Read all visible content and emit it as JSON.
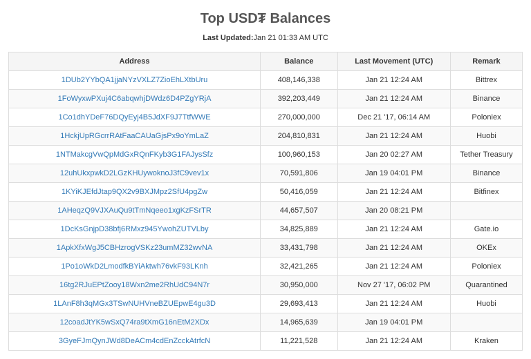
{
  "title": "Top USD₮ Balances",
  "updated_label": "Last Updated:",
  "updated_value": "Jan 21 01:33 AM UTC",
  "columns": [
    "Address",
    "Balance",
    "Last Movement (UTC)",
    "Remark"
  ],
  "colors": {
    "link": "#337ab7",
    "border": "#dddddd",
    "header_bg": "#f5f5f5",
    "row_alt_bg": "#f9f9f9",
    "text": "#333333",
    "title": "#555555"
  },
  "rows": [
    {
      "address": "1DUb2YYbQA1jjaNYzVXLZ7ZioEhLXtbUru",
      "balance": "408,146,338",
      "movement": "Jan 21 12:24 AM",
      "remark": "Bittrex"
    },
    {
      "address": "1FoWyxwPXuj4C6abqwhjDWdz6D4PZgYRjA",
      "balance": "392,203,449",
      "movement": "Jan 21 12:24 AM",
      "remark": "Binance"
    },
    {
      "address": "1Co1dhYDeF76DQyEyj4B5JdXF9J7TtfWWE",
      "balance": "270,000,000",
      "movement": "Dec 21 '17, 06:14 AM",
      "remark": "Poloniex"
    },
    {
      "address": "1HckjUpRGcrrRAtFaaCAUaGjsPx9oYmLaZ",
      "balance": "204,810,831",
      "movement": "Jan 21 12:24 AM",
      "remark": "Huobi"
    },
    {
      "address": "1NTMakcgVwQpMdGxRQnFKyb3G1FAJysSfz",
      "balance": "100,960,153",
      "movement": "Jan 20 02:27 AM",
      "remark": "Tether Treasury"
    },
    {
      "address": "12uhUkxpwkD2LGzKHUywoknoJ3fC9vev1x",
      "balance": "70,591,806",
      "movement": "Jan 19 04:01 PM",
      "remark": "Binance"
    },
    {
      "address": "1KYiKJEfdJtap9QX2v9BXJMpz2SfU4pgZw",
      "balance": "50,416,059",
      "movement": "Jan 21 12:24 AM",
      "remark": "Bitfinex"
    },
    {
      "address": "1AHeqzQ9VJXAuQu9tTmNqeeo1xgKzFSrTR",
      "balance": "44,657,507",
      "movement": "Jan 20 08:21 PM",
      "remark": ""
    },
    {
      "address": "1DcKsGnjpD38bfj6RMxz945YwohZUTVLby",
      "balance": "34,825,889",
      "movement": "Jan 21 12:24 AM",
      "remark": "Gate.io"
    },
    {
      "address": "1ApkXfxWgJ5CBHzrogVSKz23umMZ32wvNA",
      "balance": "33,431,798",
      "movement": "Jan 21 12:24 AM",
      "remark": "OKEx"
    },
    {
      "address": "1Po1oWkD2LmodfkBYiAktwh76vkF93LKnh",
      "balance": "32,421,265",
      "movement": "Jan 21 12:24 AM",
      "remark": "Poloniex"
    },
    {
      "address": "16tg2RJuEPtZooy18Wxn2me2RhUdC94N7r",
      "balance": "30,950,000",
      "movement": "Nov 27 '17, 06:02 PM",
      "remark": "Quarantined"
    },
    {
      "address": "1LAnF8h3qMGx3TSwNUHVneBZUEpwE4gu3D",
      "balance": "29,693,413",
      "movement": "Jan 21 12:24 AM",
      "remark": "Huobi"
    },
    {
      "address": "12coadJtYK5wSxQ74ra9tXmG16nEtM2XDx",
      "balance": "14,965,639",
      "movement": "Jan 19 04:01 PM",
      "remark": ""
    },
    {
      "address": "3GyeFJmQynJWd8DeACm4cdEnZcckAtrfcN",
      "balance": "11,221,528",
      "movement": "Jan 21 12:24 AM",
      "remark": "Kraken"
    }
  ]
}
